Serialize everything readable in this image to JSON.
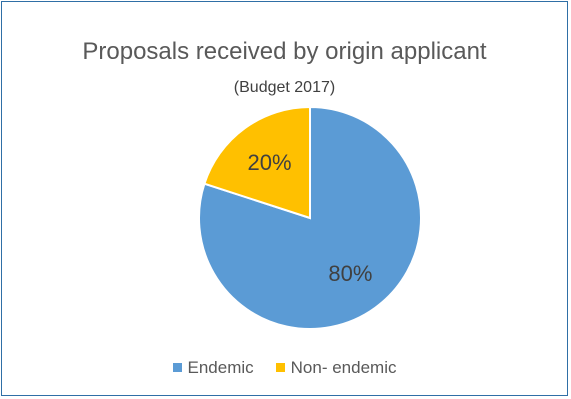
{
  "chart_data": {
    "type": "pie",
    "title": "Proposals received by origin applicant",
    "subtitle": "(Budget 2017)",
    "categories": [
      "Endemic",
      "Non- endemic"
    ],
    "values": [
      80,
      20
    ],
    "data_labels": [
      "80%",
      "20%"
    ],
    "colors": [
      "#5b9bd5",
      "#ffc000"
    ],
    "legend_position": "bottom"
  }
}
